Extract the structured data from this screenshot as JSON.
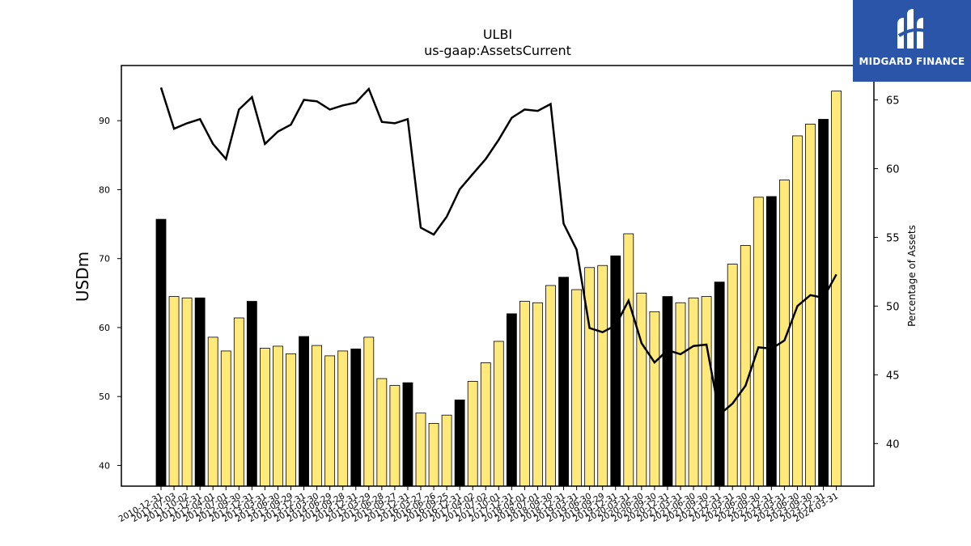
{
  "brand": {
    "name": "MIDGARD FINANCE",
    "bg": "#2a55a8"
  },
  "chart_data": {
    "type": "bar",
    "title": "ULBI",
    "subtitle": "us-gaap:AssetsCurrent",
    "ylabel": "USDm",
    "ylabel_right": "Percentage of Assets",
    "ylim": [
      37,
      98
    ],
    "ylim_right": [
      36.9,
      67.5
    ],
    "yticks": [
      40,
      50,
      60,
      70,
      80,
      90
    ],
    "yticks_right": [
      40,
      45,
      50,
      55,
      60,
      65
    ],
    "colors": {
      "annual": "#000000",
      "quarterly": "#ffe97a",
      "line": "#000000"
    },
    "categories": [
      "2010-12-31",
      "2011-07-03",
      "2011-10-02",
      "2011-12-31",
      "2012-04-01",
      "2012-07-01",
      "2012-09-30",
      "2012-12-31",
      "2013-03-31",
      "2013-06-30",
      "2013-09-29",
      "2013-12-31",
      "2014-03-30",
      "2014-06-29",
      "2014-09-28",
      "2014-12-31",
      "2015-03-29",
      "2015-06-28",
      "2015-09-27",
      "2015-12-31",
      "2016-03-27",
      "2016-06-26",
      "2016-09-25",
      "2016-12-31",
      "2017-04-02",
      "2017-07-02",
      "2017-10-01",
      "2017-12-31",
      "2018-04-01",
      "2018-07-01",
      "2018-09-30",
      "2018-12-31",
      "2019-03-31",
      "2019-06-30",
      "2019-09-29",
      "2019-12-31",
      "2020-03-31",
      "2020-06-30",
      "2020-09-30",
      "2020-12-31",
      "2021-03-31",
      "2021-06-30",
      "2021-09-30",
      "2021-12-31",
      "2022-03-31",
      "2022-06-30",
      "2022-09-30",
      "2022-12-31",
      "2023-03-31",
      "2023-06-30",
      "2023-09-30",
      "2023-12-31",
      "2024-03-31"
    ],
    "series": [
      {
        "kind": "bar",
        "values": [
          75.7,
          64.5,
          64.3,
          64.3,
          58.6,
          56.6,
          61.4,
          63.8,
          57.0,
          57.3,
          56.2,
          58.7,
          57.4,
          55.9,
          56.6,
          56.9,
          58.6,
          52.6,
          51.6,
          52.0,
          47.6,
          46.1,
          47.3,
          49.5,
          52.2,
          54.9,
          58.0,
          62.0,
          63.8,
          63.6,
          66.1,
          67.3,
          65.5,
          68.7,
          69.0,
          70.4,
          73.6,
          65.0,
          62.3,
          64.5,
          63.6,
          64.3,
          64.5,
          66.6,
          69.2,
          71.9,
          78.9,
          79.0,
          81.4,
          87.8,
          89.5,
          90.2,
          94.3
        ],
        "annual": [
          true,
          false,
          false,
          true,
          false,
          false,
          false,
          true,
          false,
          false,
          false,
          true,
          false,
          false,
          false,
          true,
          false,
          false,
          false,
          true,
          false,
          false,
          false,
          true,
          false,
          false,
          false,
          true,
          false,
          false,
          false,
          true,
          false,
          false,
          false,
          true,
          false,
          false,
          false,
          true,
          false,
          false,
          false,
          true,
          false,
          false,
          false,
          true,
          false,
          false,
          false,
          true,
          false
        ]
      },
      {
        "kind": "line",
        "axis": "right",
        "values": [
          65.9,
          62.9,
          63.3,
          63.6,
          61.8,
          60.7,
          64.3,
          65.2,
          61.8,
          62.7,
          63.2,
          65.0,
          64.9,
          64.3,
          64.6,
          64.8,
          65.8,
          63.4,
          63.3,
          63.6,
          55.7,
          55.2,
          56.5,
          58.5,
          59.6,
          60.7,
          62.1,
          63.7,
          64.3,
          64.2,
          64.7,
          56.0,
          54.1,
          48.4,
          48.1,
          48.6,
          50.4,
          47.3,
          45.9,
          46.8,
          46.5,
          47.1,
          47.2,
          42.1,
          42.9,
          44.2,
          47.0,
          46.9,
          47.5,
          50.0,
          50.8,
          50.6,
          52.3
        ]
      }
    ]
  }
}
